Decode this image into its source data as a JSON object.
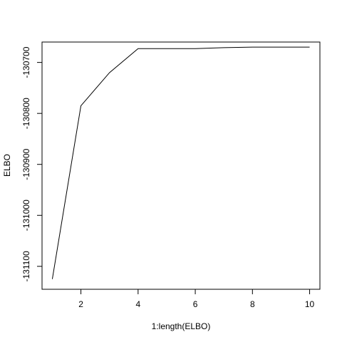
{
  "chart_data": {
    "type": "line",
    "title": "",
    "xlabel": "1:length(ELBO)",
    "ylabel": "ELBO",
    "x": [
      1,
      2,
      3,
      4,
      5,
      6,
      7,
      8,
      9,
      10
    ],
    "series": [
      {
        "values": [
          -131125,
          -130785,
          -130720,
          -130673,
          -130673,
          -130673,
          -130671,
          -130670,
          -130670,
          -130670
        ]
      }
    ],
    "xlim": [
      0.64,
      10.36
    ],
    "ylim": [
      -131145,
      -130660
    ],
    "xticks": [
      2,
      4,
      6,
      8,
      10
    ],
    "yticks": [
      -131100,
      -131000,
      -130900,
      -130800,
      -130700
    ],
    "xtick_labels": [
      "2",
      "4",
      "6",
      "8",
      "10"
    ],
    "ytick_labels": [
      "-131100",
      "-131000",
      "-130900",
      "-130800",
      "-130700"
    ],
    "grid": false,
    "legend": "none",
    "line_color": "#000000"
  }
}
